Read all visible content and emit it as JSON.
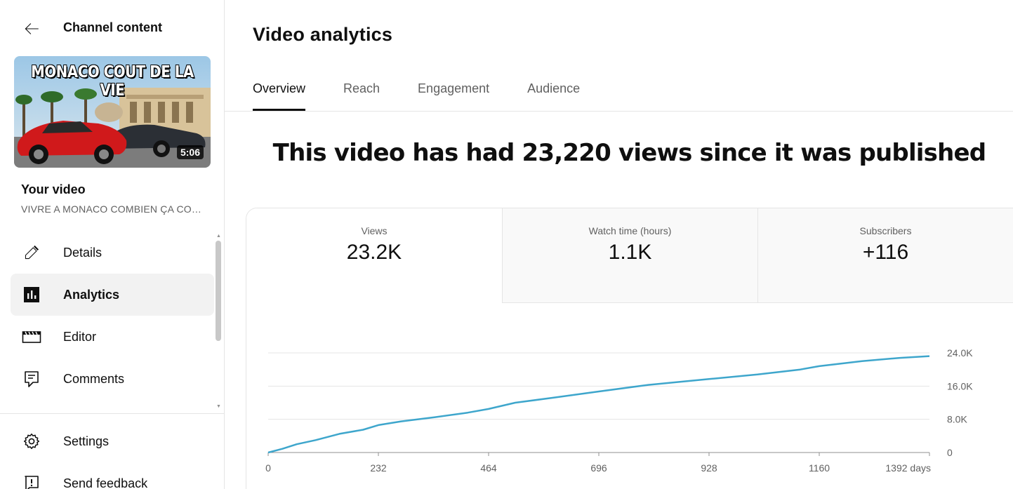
{
  "sidebar": {
    "header": {
      "title": "Channel content",
      "back_icon": "arrow-left-icon"
    },
    "thumbnail": {
      "overlay_text": "MONACO COUT DE LA VIE",
      "duration": "5:06"
    },
    "your_video_label": "Your video",
    "video_name": "VIVRE A MONACO COMBIEN ÇA COÛTE",
    "nav": [
      {
        "label": "Details",
        "icon": "pencil-icon",
        "active": false
      },
      {
        "label": "Analytics",
        "icon": "analytics-icon",
        "active": true
      },
      {
        "label": "Editor",
        "icon": "clapperboard-icon",
        "active": false
      },
      {
        "label": "Comments",
        "icon": "comment-icon",
        "active": false
      }
    ],
    "nav_bottom": [
      {
        "label": "Settings",
        "icon": "gear-icon"
      },
      {
        "label": "Send feedback",
        "icon": "feedback-icon"
      }
    ]
  },
  "main": {
    "title": "Video analytics",
    "tabs": [
      {
        "label": "Overview",
        "active": true
      },
      {
        "label": "Reach",
        "active": false
      },
      {
        "label": "Engagement",
        "active": false
      },
      {
        "label": "Audience",
        "active": false
      }
    ],
    "headline": "This video has had 23,220 views since it was published",
    "metrics": [
      {
        "label": "Views",
        "value": "23.2K",
        "active": true
      },
      {
        "label": "Watch time (hours)",
        "value": "1.1K",
        "active": false
      },
      {
        "label": "Subscribers",
        "value": "+116",
        "active": false
      }
    ]
  },
  "colors": {
    "accent": "#3ea6cc",
    "text": "#0f0f0f",
    "muted": "#606060",
    "border": "#e5e5e5"
  },
  "chart_data": {
    "type": "line",
    "title": "",
    "xlabel": "",
    "ylabel": "",
    "x_ticks": [
      "0",
      "232",
      "464",
      "696",
      "928",
      "1160",
      "1392 days"
    ],
    "y_ticks": [
      "0",
      "8.0K",
      "16.0K",
      "24.0K"
    ],
    "xlim": [
      0,
      1392
    ],
    "ylim": [
      0,
      24000
    ],
    "grid": true,
    "series": [
      {
        "name": "",
        "x": [
          0,
          30,
          60,
          100,
          150,
          200,
          232,
          280,
          350,
          420,
          464,
          520,
          600,
          696,
          800,
          928,
          1030,
          1120,
          1160,
          1250,
          1330,
          1392
        ],
        "y": [
          0,
          900,
          2000,
          3000,
          4500,
          5500,
          6600,
          7500,
          8500,
          9600,
          10500,
          12000,
          13200,
          14700,
          16300,
          17700,
          18800,
          20000,
          20800,
          22000,
          22800,
          23220
        ]
      }
    ]
  }
}
